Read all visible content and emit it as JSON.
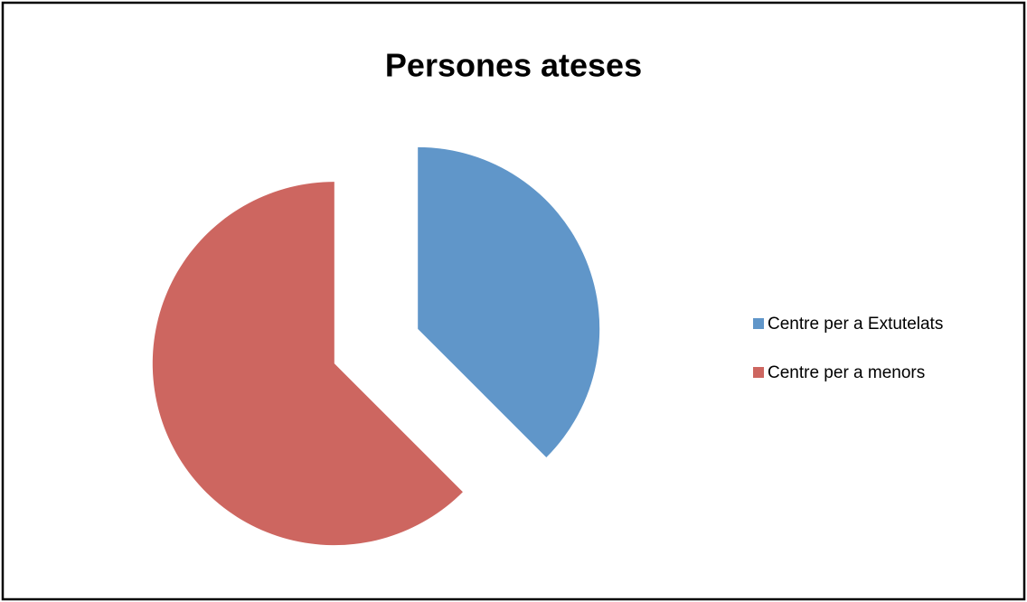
{
  "chart_data": {
    "type": "pie",
    "title": "Persones ateses",
    "categories": [
      "Centre per a Extutelats",
      "Centre per a menors"
    ],
    "values": [
      37.5,
      62.5
    ],
    "colors": [
      "#6096c9",
      "#cd6660"
    ],
    "exploded": true,
    "legend": "right"
  }
}
